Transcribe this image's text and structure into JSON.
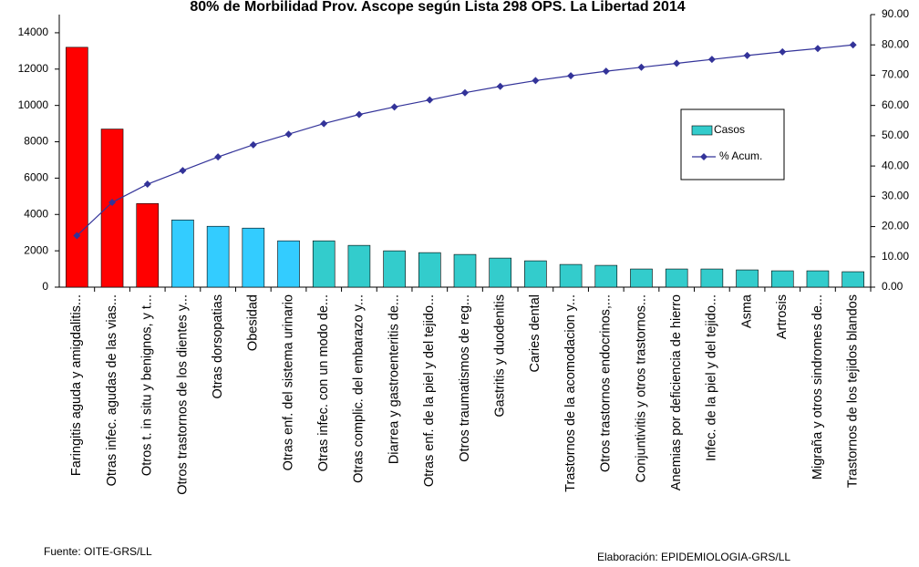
{
  "chart_data": {
    "type": "pareto",
    "title": "80% de Morbilidad Prov. Ascope según Lista 298 OPS. La Libertad 2014",
    "categories": [
      "Faringitis aguda y amigdalitis...",
      "Otras infec. agudas de las vias...",
      "Otros t. in situ y benignos, y t...",
      "Otros trastornos de los dientes y...",
      "Otras dorsopatias",
      "Obesidad",
      "Otras enf. del sistema urinario",
      "Otras infec. con un modo de...",
      "Otras complic. del embarazo y...",
      "Diarrea y gastroenteritis de...",
      "Otras enf. de la piel y del tejido...",
      "Otros traumatismos de reg...",
      "Gastritis y duodenitis",
      "Caries dental",
      "Trastornos de la acomodacion y...",
      "Otros trastornos endocrinos,...",
      "Conjuntivitis y otros trastornos...",
      "Anemias por deficiencia de hierro",
      "Infec. de la piel y del tejido...",
      "Asma",
      "Artrosis",
      "Migraña y otros sindromes de...",
      "Trastornos de los tejidos blandos"
    ],
    "series": [
      {
        "name": "Casos",
        "color": "#33cccc",
        "colors": [
          "#ff0000",
          "#ff0000",
          "#ff0000",
          "#33ccff",
          "#33ccff",
          "#33ccff",
          "#33ccff",
          "#33cccc",
          "#33cccc",
          "#33cccc",
          "#33cccc",
          "#33cccc",
          "#33cccc",
          "#33cccc",
          "#33cccc",
          "#33cccc",
          "#33cccc",
          "#33cccc",
          "#33cccc",
          "#33cccc",
          "#33cccc",
          "#33cccc",
          "#33cccc"
        ],
        "values": [
          13200,
          8700,
          4600,
          3700,
          3350,
          3250,
          2550,
          2550,
          2300,
          2000,
          1900,
          1800,
          1600,
          1450,
          1250,
          1200,
          1000,
          1000,
          1000,
          950,
          900,
          900,
          850
        ]
      },
      {
        "name": "% Acum.",
        "color": "#333399",
        "axis": "y2",
        "values": [
          17,
          28,
          34,
          38.5,
          43,
          47,
          50.5,
          54,
          57,
          59.5,
          61.8,
          64.2,
          66.3,
          68.2,
          69.8,
          71.3,
          72.6,
          73.9,
          75.2,
          76.5,
          77.7,
          78.8,
          80
        ]
      }
    ],
    "ylim": [
      0,
      15000
    ],
    "yticks": [
      0,
      2000,
      4000,
      6000,
      8000,
      10000,
      12000,
      14000
    ],
    "y2lim": [
      0,
      90
    ],
    "y2ticks": [
      {
        "value": 0,
        "label": "0.00"
      },
      {
        "value": 10,
        "label": "10.00"
      },
      {
        "value": 20,
        "label": "20.00"
      },
      {
        "value": 30,
        "label": "30.00"
      },
      {
        "value": 40,
        "label": "40.00"
      },
      {
        "value": 50,
        "label": "50.00"
      },
      {
        "value": 60,
        "label": "60.00"
      },
      {
        "value": 70,
        "label": "70.00"
      },
      {
        "value": 80,
        "label": "80.00"
      },
      {
        "value": 90,
        "label": "90.00"
      }
    ],
    "grid": false,
    "legend": "right",
    "source": "Fuente: OITE-GRS/LL",
    "credit": "Elaboración: EPIDEMIOLOGIA-GRS/LL"
  }
}
